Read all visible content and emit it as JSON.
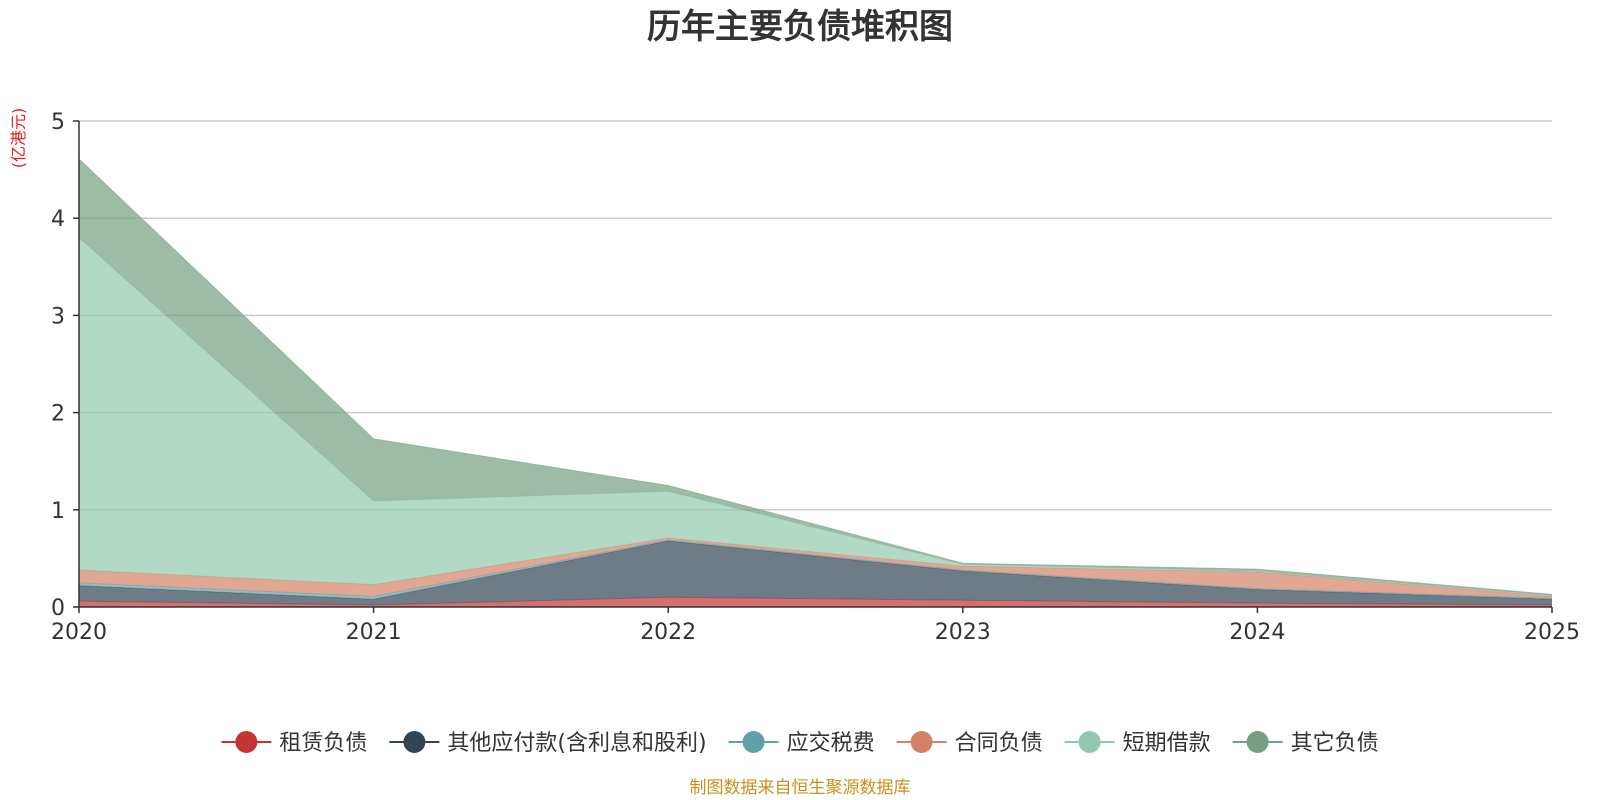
{
  "chart_data": {
    "type": "area",
    "stacked": true,
    "title": "历年主要负债堆积图",
    "ylabel": "(亿港元)",
    "xlabel": "",
    "x": [
      "2020",
      "2021",
      "2022",
      "2023",
      "2024",
      "2025"
    ],
    "ylim": [
      0,
      5
    ],
    "yticks": [
      "0",
      "1",
      "2",
      "3",
      "4",
      "5"
    ],
    "grid": true,
    "legend_position": "bottom",
    "series": [
      {
        "name": "租赁负债",
        "color": "#c23531",
        "values": [
          0.06,
          0.02,
          0.1,
          0.07,
          0.04,
          0.02
        ]
      },
      {
        "name": "其他应付款(含利息和股利)",
        "color": "#2f4554",
        "values": [
          0.16,
          0.06,
          0.58,
          0.3,
          0.14,
          0.06
        ]
      },
      {
        "name": "应交税费",
        "color": "#61a0a8",
        "values": [
          0.03,
          0.03,
          0.01,
          0.01,
          0.01,
          0.01
        ]
      },
      {
        "name": "合同负债",
        "color": "#d48265",
        "values": [
          0.13,
          0.12,
          0.02,
          0.04,
          0.17,
          0.02
        ]
      },
      {
        "name": "短期借款",
        "color": "#91c7ae",
        "values": [
          3.42,
          0.86,
          0.48,
          0.02,
          0.01,
          0.01
        ]
      },
      {
        "name": "其它负债",
        "color": "#749f83",
        "values": [
          0.81,
          0.64,
          0.06,
          0.01,
          0.02,
          0.01
        ]
      }
    ]
  },
  "footer": {
    "source": "制图数据来自恒生聚源数据库"
  }
}
